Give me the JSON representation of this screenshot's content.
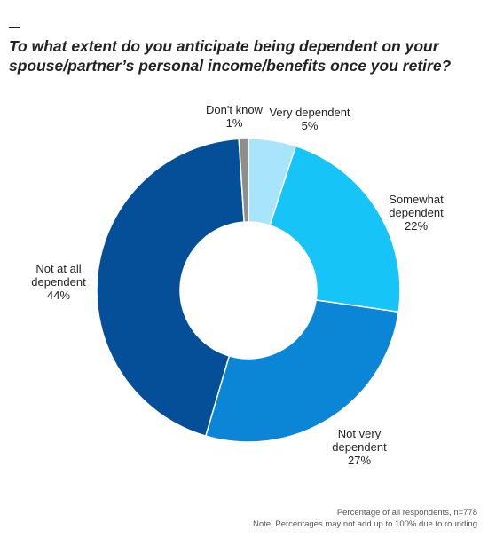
{
  "title_lines": [
    "To what extent do you anticipate being dependent on your",
    "spouse/partner’s personal income/benefits once you retire?"
  ],
  "footnotes": {
    "base": "Percentage of all respondents, n=778",
    "note": "Note: Percentages may not add up to 100% due to rounding"
  },
  "chart_data": {
    "type": "pie",
    "title": "To what extent do you anticipate being dependent on your spouse/partner’s personal income/benefits once you retire?",
    "donut": true,
    "unit": "%",
    "slices": [
      {
        "label_lines": [
          "Very dependent"
        ],
        "value": 5,
        "display": "5%",
        "color": "#a8e4fb"
      },
      {
        "label_lines": [
          "Somewhat",
          "dependent"
        ],
        "value": 22,
        "display": "22%",
        "color": "#17c4f7"
      },
      {
        "label_lines": [
          "Not very",
          "dependent"
        ],
        "value": 27,
        "display": "27%",
        "color": "#0b86d6"
      },
      {
        "label_lines": [
          "Not at all",
          "dependent"
        ],
        "value": 44,
        "display": "44%",
        "color": "#044f98"
      },
      {
        "label_lines": [
          "Don't know"
        ],
        "value": 1,
        "display": "1%",
        "color": "#8e8e8e"
      }
    ]
  }
}
